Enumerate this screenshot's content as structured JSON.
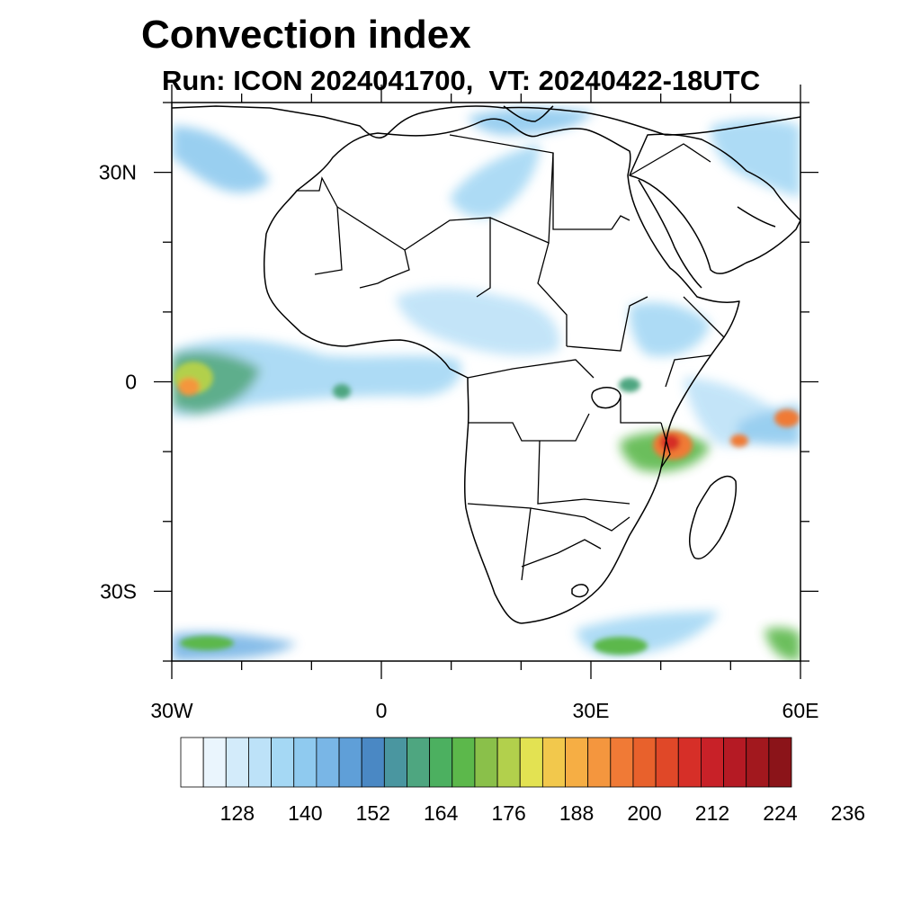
{
  "title": "Convection index",
  "subtitle": "Run: ICON 2024041700,  VT: 20240422-18UTC",
  "map": {
    "lon_range": [
      -30,
      60
    ],
    "lat_range": [
      -40,
      40
    ],
    "x_tick_labels": [
      "30W",
      "0",
      "30E",
      "60E"
    ],
    "y_tick_labels": [
      "30N",
      "0",
      "30S"
    ]
  },
  "colorbar": {
    "labels": [
      "128",
      "140",
      "152",
      "164",
      "176",
      "188",
      "200",
      "212",
      "224",
      "236"
    ],
    "colors": [
      "#ffffff",
      "#eaf5fd",
      "#d3ebfa",
      "#bde2f8",
      "#a5d8f4",
      "#8fcaef",
      "#79b6e6",
      "#5f9fd8",
      "#4a88c4",
      "#4a96a0",
      "#4ea680",
      "#4cb060",
      "#5cb84b",
      "#8ac04a",
      "#b2d04c",
      "#e3e252",
      "#f2c84c",
      "#f6ae44",
      "#f4963e",
      "#f07a36",
      "#e8612c",
      "#e04828",
      "#d62f28",
      "#c82128",
      "#b51a24",
      "#a2181e",
      "#8b1419"
    ]
  }
}
